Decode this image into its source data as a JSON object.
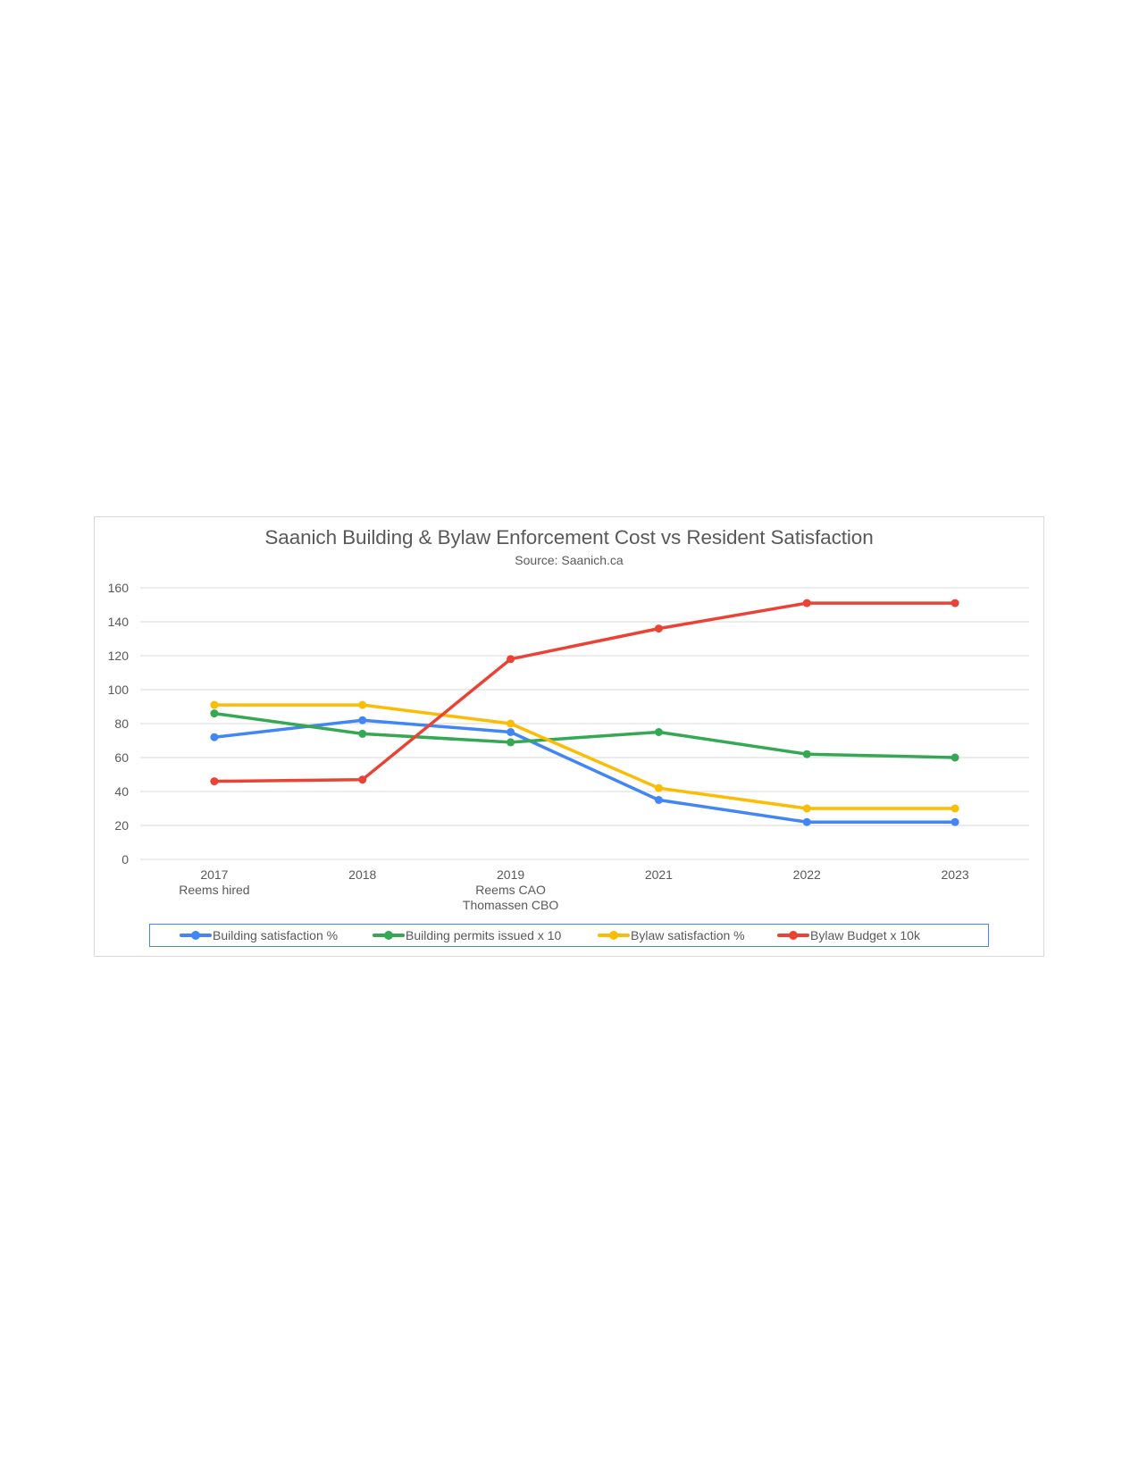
{
  "chart_data": {
    "type": "line",
    "title": "Saanich Building & Bylaw Enforcement Cost vs Resident Satisfaction",
    "subtitle": "Source: Saanich.ca",
    "xlabel": "",
    "ylabel": "",
    "categories": [
      "2017",
      "2018",
      "2019",
      "2021",
      "2022",
      "2023"
    ],
    "category_annotations": [
      [
        "2017",
        "Reems hired"
      ],
      [
        "2018"
      ],
      [
        "2019",
        "Reems  CAO",
        "Thomassen CBO"
      ],
      [
        "2021"
      ],
      [
        "2022"
      ],
      [
        "2023"
      ]
    ],
    "ylim": [
      0,
      160
    ],
    "yticks": [
      0,
      20,
      40,
      60,
      80,
      100,
      120,
      140,
      160
    ],
    "grid": true,
    "legend_position": "bottom",
    "series": [
      {
        "name": "Building satisfaction %",
        "color": "#4285f4",
        "values": [
          72,
          82,
          75,
          35,
          22,
          22
        ]
      },
      {
        "name": "Building permits issued x 10",
        "color": "#34a853",
        "values": [
          86,
          74,
          69,
          75,
          62,
          60
        ]
      },
      {
        "name": "Bylaw satisfaction %",
        "color": "#fbbc04",
        "values": [
          91,
          91,
          80,
          42,
          30,
          30
        ]
      },
      {
        "name": "Bylaw Budget x 10k",
        "color": "#ea4335",
        "values": [
          46,
          47,
          118,
          136,
          151,
          151
        ]
      }
    ]
  },
  "colors": {
    "text": "#595959",
    "gridline": "#d9d9d9",
    "frame_border": "#d9d9d9",
    "legend_border": "#4a86e8"
  }
}
